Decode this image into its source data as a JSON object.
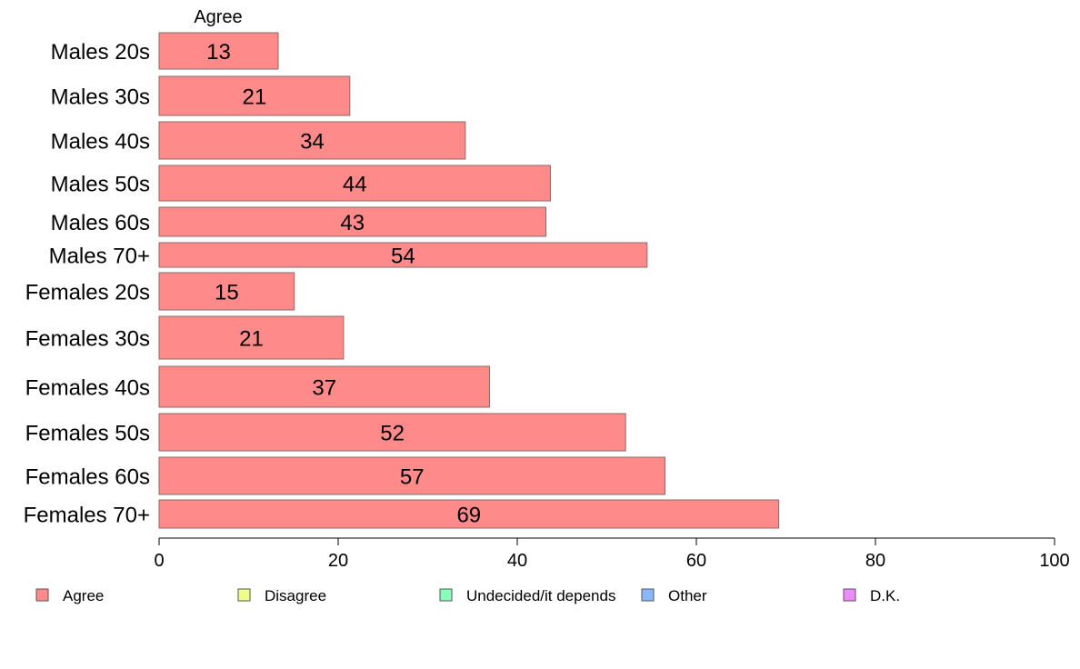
{
  "chart_data": {
    "type": "bar",
    "orientation": "horizontal",
    "series_heading": "Agree",
    "categories": [
      "Males 20s",
      "Males 30s",
      "Males 40s",
      "Males 50s",
      "Males 60s",
      "Males 70+",
      "Females 20s",
      "Females 30s",
      "Females 40s",
      "Females 50s",
      "Females 60s",
      "Females 70+"
    ],
    "series": [
      {
        "name": "Agree",
        "color": "#ff8a8a",
        "values": [
          13.3,
          21.3,
          34.2,
          43.7,
          43.2,
          54.5,
          15.1,
          20.6,
          36.9,
          52.1,
          56.5,
          69.2
        ],
        "labels": [
          "13",
          "21",
          "34",
          "44",
          "43",
          "54",
          "15",
          "21",
          "37",
          "52",
          "57",
          "69"
        ]
      }
    ],
    "xlim": [
      0,
      100
    ],
    "xticks": [
      "0",
      "20",
      "40",
      "60",
      "80",
      "100"
    ],
    "grid": false,
    "legend_position": "bottom",
    "legend": [
      {
        "label": "Agree",
        "color": "#ff8a8a"
      },
      {
        "label": "Disagree",
        "color": "#eeff8a"
      },
      {
        "label": "Undecided/it depends",
        "color": "#8affb8"
      },
      {
        "label": "Other",
        "color": "#8ab8ff"
      },
      {
        "label": "D.K.",
        "color": "#ee8aff"
      }
    ]
  }
}
